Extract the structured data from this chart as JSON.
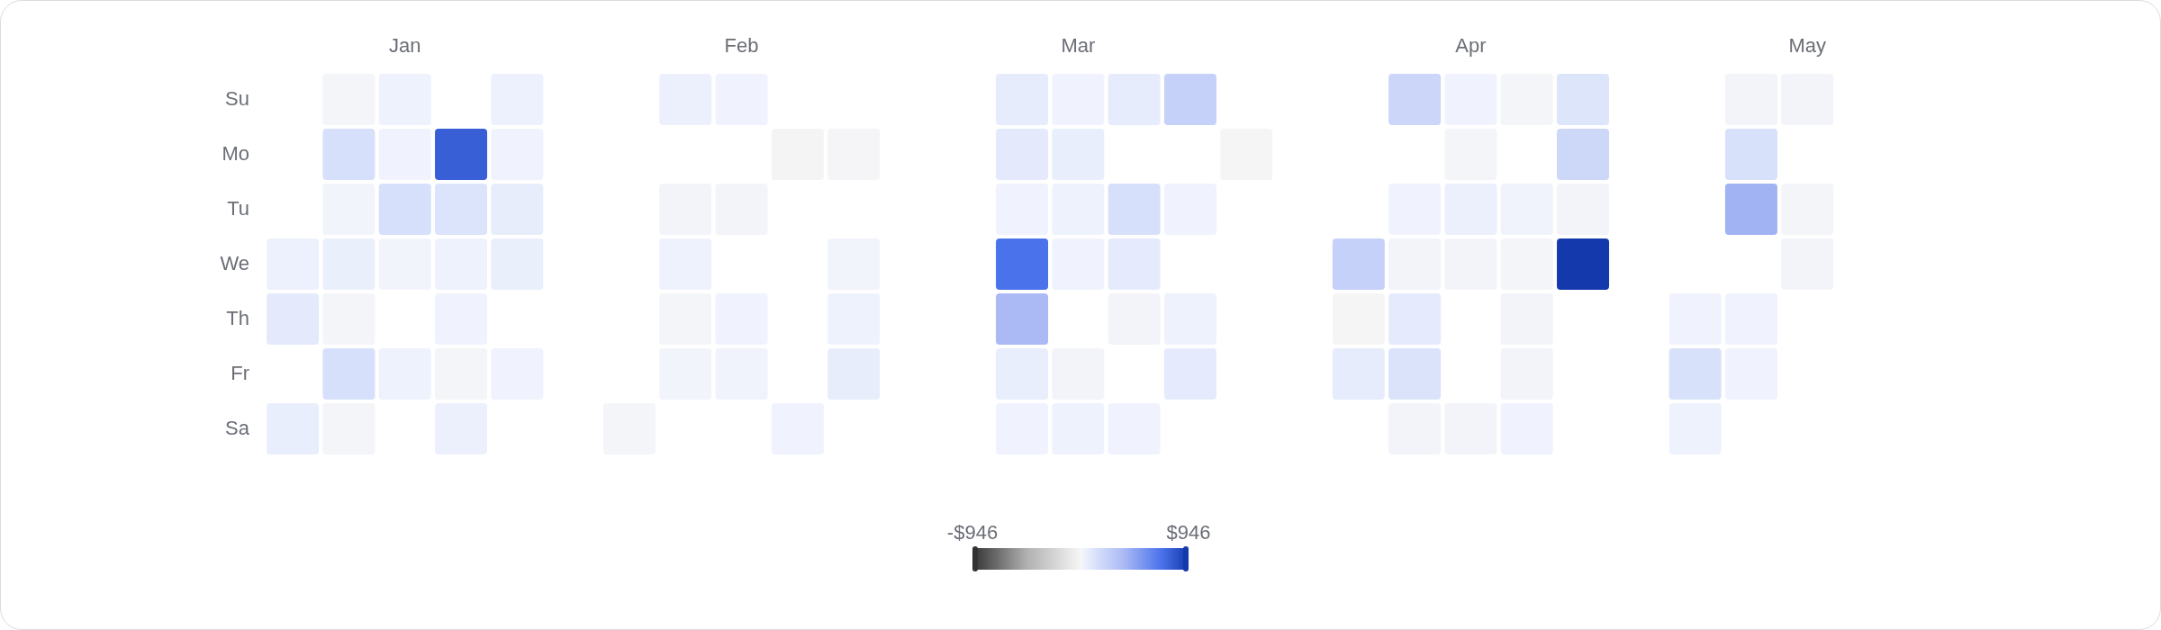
{
  "chart_data": {
    "type": "heatmap",
    "categories": [
      null,
      null,
      "Jan",
      null,
      null,
      null,
      null,
      null,
      "Feb",
      null,
      null,
      null,
      null,
      null,
      "Mar",
      null,
      null,
      null,
      null,
      null,
      null,
      "Apr",
      null,
      null,
      null,
      null,
      null,
      "May",
      null,
      null
    ],
    "y_categories": [
      "Su",
      "Mo",
      "Tu",
      "We",
      "Th",
      "Fr",
      "Sa"
    ],
    "cells": [
      [
        null,
        10,
        35,
        null,
        40,
        null,
        null,
        45,
        30,
        null,
        null,
        null,
        null,
        70,
        30,
        70,
        235,
        null,
        null,
        null,
        205,
        30,
        10,
        110,
        null,
        null,
        15,
        15,
        null,
        null
      ],
      [
        null,
        140,
        30,
        790,
        30,
        null,
        null,
        null,
        null,
        -15,
        5,
        null,
        null,
        80,
        60,
        null,
        null,
        -10,
        null,
        null,
        null,
        10,
        null,
        190,
        null,
        null,
        135,
        null,
        null,
        null
      ],
      [
        null,
        20,
        140,
        120,
        65,
        null,
        null,
        15,
        15,
        null,
        null,
        null,
        null,
        30,
        35,
        140,
        30,
        null,
        null,
        null,
        30,
        45,
        25,
        15,
        null,
        null,
        410,
        10,
        null,
        null
      ],
      [
        40,
        55,
        20,
        35,
        55,
        null,
        null,
        35,
        null,
        null,
        20,
        null,
        null,
        710,
        30,
        75,
        null,
        null,
        null,
        235,
        15,
        15,
        10,
        946,
        null,
        null,
        null,
        15,
        null,
        null
      ],
      [
        80,
        10,
        null,
        30,
        null,
        null,
        null,
        10,
        30,
        null,
        35,
        null,
        null,
        380,
        null,
        15,
        35,
        null,
        null,
        -5,
        75,
        null,
        15,
        null,
        null,
        30,
        30,
        null,
        null,
        null
      ],
      [
        null,
        140,
        35,
        10,
        30,
        null,
        null,
        20,
        25,
        null,
        65,
        null,
        null,
        60,
        15,
        null,
        75,
        null,
        null,
        70,
        125,
        null,
        15,
        null,
        null,
        135,
        30,
        null,
        null,
        null
      ],
      [
        60,
        10,
        null,
        45,
        null,
        null,
        10,
        null,
        null,
        30,
        null,
        null,
        null,
        30,
        35,
        30,
        null,
        null,
        null,
        null,
        15,
        15,
        30,
        null,
        null,
        35,
        null,
        null,
        null,
        null
      ]
    ],
    "clim": [
      -946,
      946
    ],
    "cticks": [
      {
        "value": -946,
        "label": "-$946"
      },
      {
        "value": 946,
        "label": "$946"
      }
    ]
  }
}
